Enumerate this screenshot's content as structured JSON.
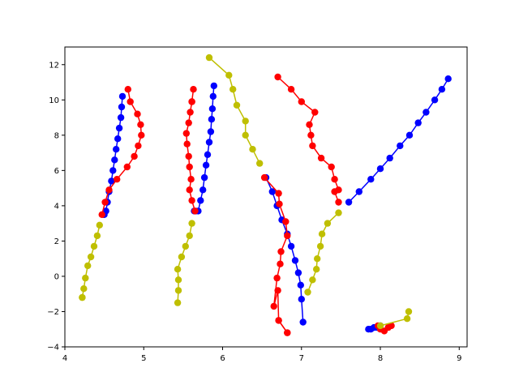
{
  "chart_data": {
    "type": "line",
    "xlim": [
      4.0,
      9.1
    ],
    "ylim": [
      -4,
      13
    ],
    "x_ticks": [
      4,
      5,
      6,
      7,
      8,
      9
    ],
    "y_ticks": [
      -4,
      -2,
      0,
      2,
      4,
      6,
      8,
      10,
      12
    ],
    "x_tick_labels": [
      "4",
      "5",
      "6",
      "7",
      "8",
      "9"
    ],
    "y_tick_labels": [
      "−4",
      "−2",
      "0",
      "2",
      "4",
      "6",
      "8",
      "10",
      "12"
    ],
    "grid": false,
    "legend": "none",
    "series": [
      {
        "color": "#0000ff",
        "x": [
          4.73,
          4.72,
          4.71,
          4.69,
          4.67,
          4.65,
          4.63,
          4.61,
          4.59,
          4.56,
          4.54,
          4.52,
          4.5
        ],
        "y": [
          10.2,
          9.6,
          9.0,
          8.4,
          7.8,
          7.2,
          6.6,
          6.0,
          5.4,
          4.8,
          4.2,
          3.7,
          3.5
        ]
      },
      {
        "color": "#ff0000",
        "x": [
          4.47,
          4.51,
          4.56,
          4.66,
          4.79,
          4.88,
          4.93,
          4.97,
          4.96,
          4.92,
          4.83,
          4.8
        ],
        "y": [
          3.5,
          4.2,
          4.9,
          5.5,
          6.2,
          6.8,
          7.4,
          8.0,
          8.6,
          9.2,
          9.9,
          10.6
        ]
      },
      {
        "color": "#bfbf00",
        "x": [
          4.44,
          4.41,
          4.37,
          4.33,
          4.29,
          4.26,
          4.24,
          4.22,
          4.22
        ],
        "y": [
          2.9,
          2.3,
          1.7,
          1.1,
          0.6,
          -0.1,
          -0.7,
          -1.2,
          -1.2
        ]
      },
      {
        "color": "#0000ff",
        "x": [
          5.89,
          5.88,
          5.87,
          5.86,
          5.85,
          5.83,
          5.81,
          5.79,
          5.77,
          5.75,
          5.72,
          5.69,
          5.66,
          5.64
        ],
        "y": [
          10.8,
          10.2,
          9.5,
          8.9,
          8.2,
          7.6,
          6.9,
          6.3,
          5.6,
          4.9,
          4.3,
          3.7,
          3.7,
          3.7
        ]
      },
      {
        "color": "#ff0000",
        "x": [
          5.65,
          5.61,
          5.58,
          5.6,
          5.58,
          5.57,
          5.55,
          5.54,
          5.57,
          5.59,
          5.61
        ],
        "y": [
          3.7,
          4.3,
          4.9,
          5.5,
          6.2,
          6.8,
          7.5,
          8.1,
          8.7,
          9.3,
          9.9
        ]
      },
      {
        "color": "#ff0000",
        "x": [
          5.61,
          5.63
        ],
        "y": [
          9.9,
          10.6
        ]
      },
      {
        "color": "#bfbf00",
        "x": [
          5.61,
          5.58,
          5.53,
          5.48,
          5.43,
          5.44,
          5.44,
          5.43
        ],
        "y": [
          3.0,
          2.3,
          1.7,
          1.1,
          0.4,
          -0.2,
          -0.8,
          -1.5
        ]
      },
      {
        "color": "#bfbf00",
        "x": [
          5.83,
          6.08,
          6.13,
          6.18,
          6.29,
          6.29,
          6.38,
          6.47
        ],
        "y": [
          12.4,
          11.4,
          10.6,
          9.7,
          8.8,
          8.0,
          7.2,
          6.4
        ]
      },
      {
        "color": "#ff0000",
        "x": [
          6.7,
          6.87,
          7.0,
          7.17,
          7.1,
          7.12,
          7.14,
          7.25,
          7.38,
          7.42,
          7.47
        ],
        "y": [
          11.3,
          10.6,
          9.9,
          9.3,
          8.6,
          8.0,
          7.4,
          6.7,
          6.2,
          5.5,
          4.9
        ]
      },
      {
        "color": "#ff0000",
        "x": [
          7.42,
          7.47
        ],
        "y": [
          4.8,
          4.2
        ]
      },
      {
        "color": "#0000ff",
        "x": [
          6.55,
          6.63,
          6.69,
          6.75,
          6.82,
          6.87,
          6.92,
          6.96,
          6.99,
          7.0,
          7.02
        ],
        "y": [
          5.6,
          4.8,
          4.0,
          3.2,
          2.4,
          1.7,
          0.9,
          0.2,
          -0.5,
          -1.3,
          -2.6
        ]
      },
      {
        "color": "#ff0000",
        "x": [
          6.53,
          6.71,
          6.72,
          6.8,
          6.82,
          6.74,
          6.73,
          6.69,
          6.65,
          6.7,
          6.71,
          6.82
        ],
        "y": [
          5.6,
          4.7,
          4.1,
          3.1,
          2.3,
          1.4,
          0.7,
          -0.1,
          -1.7,
          -0.8,
          -2.5,
          -3.2
        ]
      },
      {
        "color": "#ff0000",
        "x": [
          6.71,
          6.82
        ],
        "y": [
          -2.5,
          -3.2
        ]
      },
      {
        "color": "#bfbf00",
        "x": [
          7.08,
          7.14,
          7.19,
          7.2,
          7.24,
          7.26,
          7.33,
          7.47
        ],
        "y": [
          -0.9,
          -0.2,
          0.4,
          1.0,
          1.7,
          2.4,
          3.0,
          3.6
        ]
      },
      {
        "color": "#0000ff",
        "x": [
          7.6,
          7.73,
          7.88,
          8.0,
          8.12,
          8.25,
          8.37,
          8.48,
          8.58,
          8.69,
          8.78,
          8.86
        ],
        "y": [
          4.2,
          4.8,
          5.5,
          6.1,
          6.7,
          7.4,
          8.0,
          8.7,
          9.3,
          10.0,
          10.6,
          11.2
        ]
      },
      {
        "color": "#0000ff",
        "x": [
          7.85,
          7.88,
          7.92,
          7.96,
          8.0
        ],
        "y": [
          -3.0,
          -3.0,
          -2.9,
          -2.9,
          -2.8
        ]
      },
      {
        "color": "#ff0000",
        "x": [
          7.97,
          8.0,
          8.05,
          8.1,
          8.14
        ],
        "y": [
          -2.8,
          -3.0,
          -3.1,
          -2.9,
          -2.8
        ]
      },
      {
        "color": "#bfbf00",
        "x": [
          8.0,
          8.34,
          8.36
        ],
        "y": [
          -2.8,
          -2.4,
          -2.0
        ]
      }
    ]
  }
}
